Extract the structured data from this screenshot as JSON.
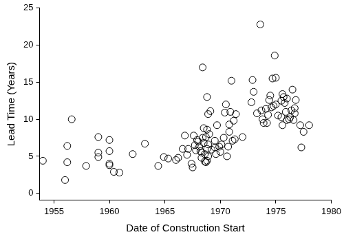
{
  "chart_data": {
    "type": "scatter",
    "x_label": "Date of Construction Start",
    "y_label": "Lead Time (Years)",
    "color": "#000000",
    "marker": "circle",
    "grid": false,
    "xlim": [
      1953.7,
      1980
    ],
    "xticks": [
      1955,
      1960,
      1965,
      1970,
      1975,
      1980
    ],
    "ylim": [
      -0.9,
      25
    ],
    "yticks": [
      0,
      5,
      10,
      15,
      20,
      25
    ],
    "x": [
      1954,
      1956,
      1956.2,
      1956.2,
      1956.6,
      1957.9,
      1959,
      1959,
      1959,
      1960,
      1960,
      1960,
      1960,
      1960.4,
      1960.9,
      1962.1,
      1963.2,
      1964.4,
      1964.9,
      1965.3,
      1966,
      1966.2,
      1966.6,
      1966.8,
      1967,
      1967.1,
      1967.4,
      1967.5,
      1967.6,
      1967.7,
      1967.8,
      1967.9,
      1968,
      1968.1,
      1968.2,
      1968.3,
      1968.3,
      1968.4,
      1968.5,
      1968.5,
      1968.6,
      1968.7,
      1968.8,
      1968.6,
      1968.9,
      1968.8,
      1968.9,
      1968.7,
      1968.8,
      1969,
      1968.9,
      1968.8,
      1968.4,
      1969.1,
      1969.2,
      1969.5,
      1969.5,
      1969.6,
      1969.7,
      1969.9,
      1970,
      1970.1,
      1970.3,
      1970.4,
      1970.5,
      1970.6,
      1970.7,
      1970.8,
      1970.8,
      1970.9,
      1971,
      1971.1,
      1971.2,
      1971.4,
      1971.3,
      1972,
      1972.8,
      1972.9,
      1973,
      1973.3,
      1973.6,
      1973.7,
      1973.8,
      1973.9,
      1974.1,
      1974.2,
      1974.3,
      1974.4,
      1974.5,
      1974.6,
      1974.7,
      1974.8,
      1974.9,
      1975,
      1975,
      1975.2,
      1975.5,
      1975.6,
      1975.6,
      1975.7,
      1975.8,
      1975.9,
      1976,
      1976.2,
      1976.3,
      1976.4,
      1976.5,
      1976.6,
      1976.7,
      1976.7,
      1976.8,
      1977.2,
      1977.3,
      1977.5,
      1978,
      1975.5,
      1976
    ],
    "values": [
      4.4,
      1.8,
      4.2,
      6.4,
      10,
      3.7,
      7.6,
      5.5,
      4.9,
      7.2,
      5.7,
      4.0,
      3.8,
      2.9,
      2.8,
      5.3,
      6.7,
      3.7,
      4.9,
      4.7,
      4.5,
      4.8,
      6.0,
      7.8,
      5.2,
      6.0,
      4.0,
      3.5,
      7.8,
      6.5,
      5.8,
      7.2,
      7.0,
      6.3,
      5.7,
      5.5,
      4.8,
      7.5,
      6.8,
      8.8,
      4.3,
      4.2,
      4.4,
      5.3,
      5.0,
      6.0,
      6.6,
      7.6,
      8.6,
      8.0,
      10.7,
      13.0,
      17.0,
      11.1,
      5.9,
      6.2,
      7.1,
      5.3,
      9.2,
      6.3,
      5.6,
      6.6,
      7.5,
      10.9,
      12.0,
      5.0,
      6.3,
      8.3,
      9.3,
      11.0,
      15.2,
      7.1,
      9.8,
      10.7,
      7.3,
      7.6,
      12.3,
      15.3,
      13.7,
      10.8,
      22.8,
      11.2,
      10.0,
      9.5,
      11.4,
      9.5,
      10.6,
      12.6,
      13.2,
      11.6,
      15.5,
      11.8,
      18.6,
      12.0,
      15.6,
      10.5,
      12.5,
      9.2,
      13.4,
      13.0,
      12.2,
      11.0,
      12.8,
      10.0,
      10.3,
      11.2,
      14.0,
      9.9,
      11.5,
      10.8,
      12.6,
      9.2,
      6.2,
      8.3,
      9.2,
      10.3,
      9.9
    ]
  }
}
